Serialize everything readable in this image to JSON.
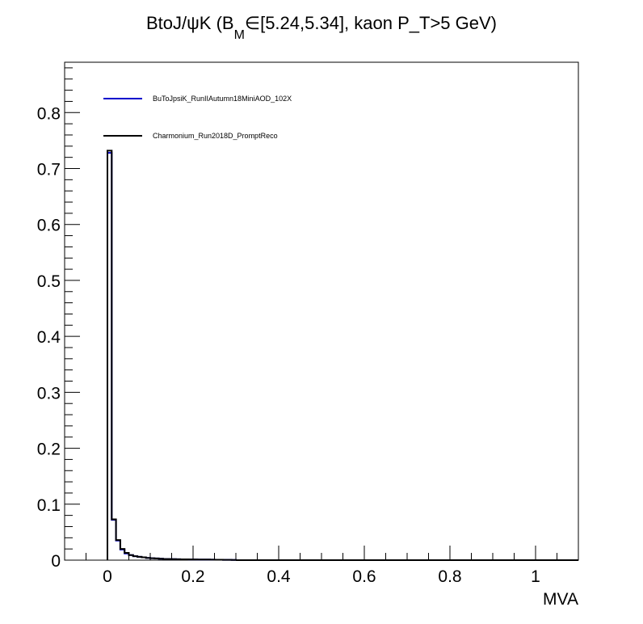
{
  "chart_data": {
    "type": "histogram",
    "title_parts": {
      "prefix": "BtoJ/ψK (B",
      "sub": "M",
      "suffix": "∈[5.24,5.34], kaon P_T>5 GeV)"
    },
    "xlabel": "MVA",
    "ylabel": "",
    "xlim": [
      -0.1,
      1.1
    ],
    "ylim": [
      0,
      0.89
    ],
    "x_ticks": [
      0,
      0.2,
      0.4,
      0.6,
      0.8,
      1
    ],
    "x_tick_labels": [
      "0",
      "0.2",
      "0.4",
      "0.6",
      "0.8",
      "1"
    ],
    "y_ticks": [
      0,
      0.1,
      0.2,
      0.3,
      0.4,
      0.5,
      0.6,
      0.7,
      0.8
    ],
    "y_tick_labels": [
      "0",
      "0.1",
      "0.2",
      "0.3",
      "0.4",
      "0.5",
      "0.6",
      "0.7",
      "0.8"
    ],
    "grid": false,
    "legend_position": "top-left",
    "bin_width": 0.01,
    "bin_edges_start": 0,
    "series": [
      {
        "name": "BuToJpsiK_RunIIAutumn18MiniAOD_102X",
        "color": "#0000cc",
        "values": [
          0.728,
          0.072,
          0.035,
          0.019,
          0.012,
          0.009,
          0.007,
          0.006,
          0.005,
          0.004,
          0.0035,
          0.003,
          0.0025,
          0.002,
          0.002,
          0.0018,
          0.0016,
          0.0015,
          0.0014,
          0.0013,
          0.0012,
          0.0011,
          0.001,
          0.001,
          0.0009,
          0.0008,
          0.0007,
          0.0006,
          0.0005,
          0.0004
        ]
      },
      {
        "name": "Charmonium_Run2018D_PromptReco",
        "color": "#000000",
        "values": [
          0.732,
          0.073,
          0.036,
          0.02,
          0.013,
          0.009,
          0.007,
          0.006,
          0.005,
          0.004,
          0.0035,
          0.003,
          0.0025,
          0.002,
          0.002,
          0.0018,
          0.0016,
          0.0015,
          0.0014,
          0.0013,
          0.0012,
          0.0011,
          0.001,
          0.001,
          0.0009,
          0.0008,
          0.0007,
          0.0006,
          0.0005,
          0.0004
        ]
      }
    ]
  }
}
